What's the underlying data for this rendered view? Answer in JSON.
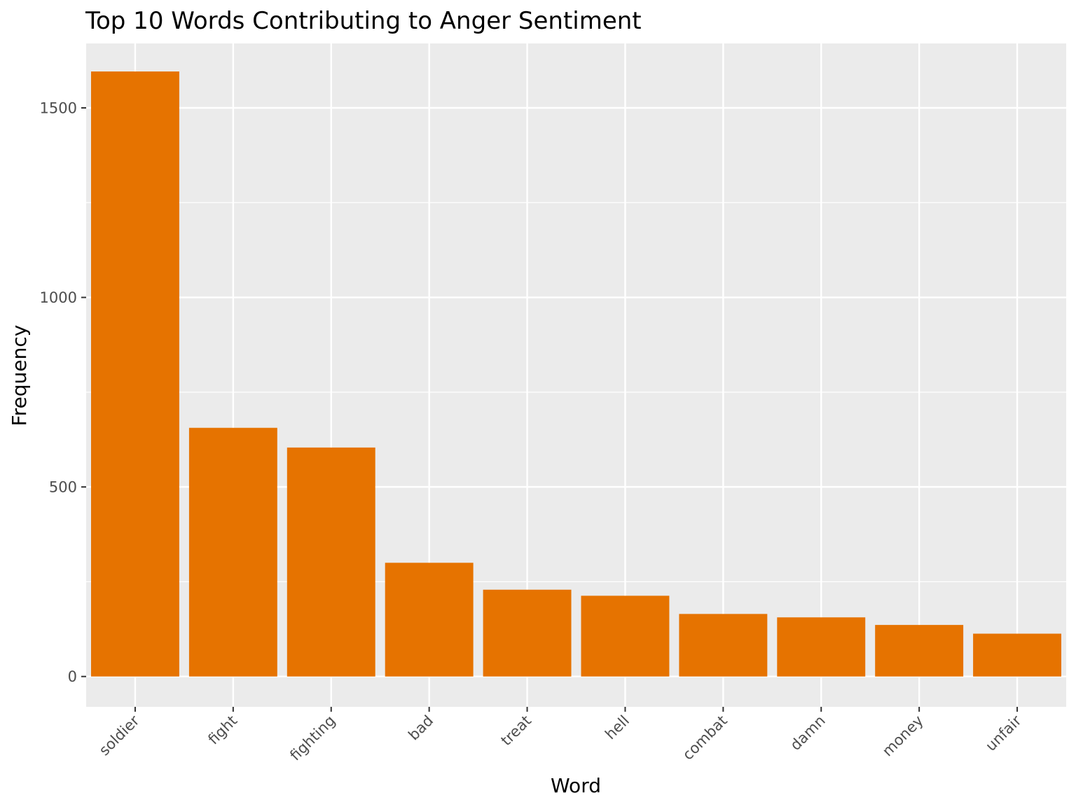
{
  "chart_data": {
    "type": "bar",
    "title": "Top 10 Words Contributing to Anger Sentiment",
    "xlabel": "Word",
    "ylabel": "Frequency",
    "categories": [
      "soldier",
      "fight",
      "fighting",
      "bad",
      "treat",
      "hell",
      "combat",
      "damn",
      "money",
      "unfair"
    ],
    "values": [
      1596,
      656,
      604,
      300,
      229,
      213,
      165,
      156,
      136,
      113
    ],
    "ylim": [
      -80,
      1670
    ],
    "yticks": [
      0,
      500,
      1000,
      1500
    ],
    "ytick_labels": [
      "0",
      "500",
      "1000",
      "1500"
    ],
    "grid": true,
    "legend": "none",
    "colors": {
      "bar": "#E67300",
      "panel": "#EBEBEB",
      "grid": "#FFFFFF",
      "text": "#000000",
      "tick_text": "#4D4D4D",
      "tick_mark": "#333333"
    }
  }
}
